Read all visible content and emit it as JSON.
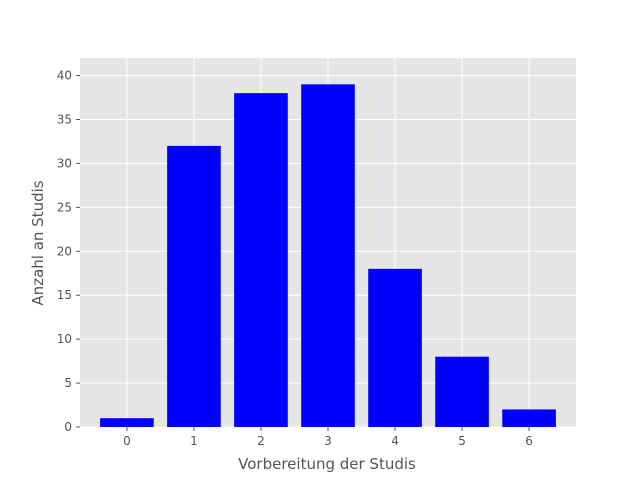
{
  "chart_data": {
    "type": "bar",
    "categories": [
      "0",
      "1",
      "2",
      "3",
      "4",
      "5",
      "6"
    ],
    "values": [
      1,
      32,
      38,
      39,
      18,
      8,
      2
    ],
    "xlabel": "Vorbereitung der Studis",
    "ylabel": "Anzahl an Studis",
    "ylim": [
      0,
      42
    ],
    "yticks": [
      0,
      5,
      10,
      15,
      20,
      25,
      30,
      35,
      40
    ],
    "ytick_labels": [
      "0",
      "5",
      "10",
      "15",
      "20",
      "25",
      "30",
      "35",
      "40"
    ],
    "xlim": [
      -0.7,
      6.7
    ],
    "grid": true,
    "style": "ggplot",
    "colors": {
      "bar": "#0000ff",
      "plot_background": "#e5e5e5",
      "grid": "#ffffff",
      "text": "#555555"
    }
  }
}
